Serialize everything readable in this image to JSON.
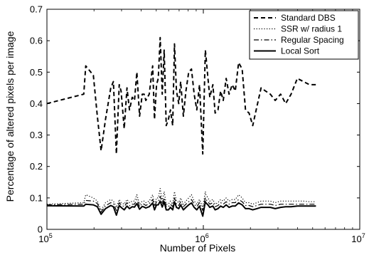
{
  "chart_data": {
    "type": "line",
    "xlabel": "Number of Pixels",
    "ylabel": "Percentage of altered pixels per image",
    "xscale": "log",
    "xlim": [
      100000,
      10000000
    ],
    "ylim": [
      0,
      0.7
    ],
    "grid": false,
    "legend_position": "top-right",
    "x_ticks": [
      {
        "value": 100000,
        "base": "10",
        "exp": "5"
      },
      {
        "value": 1000000,
        "base": "10",
        "exp": "6"
      },
      {
        "value": 10000000,
        "base": "10",
        "exp": "7"
      }
    ],
    "y_ticks": [
      {
        "value": 0,
        "label": "0"
      },
      {
        "value": 0.1,
        "label": "0.1"
      },
      {
        "value": 0.2,
        "label": "0.2"
      },
      {
        "value": 0.3,
        "label": "0.3"
      },
      {
        "value": 0.4,
        "label": "0.4"
      },
      {
        "value": 0.5,
        "label": "0.5"
      },
      {
        "value": 0.6,
        "label": "0.6"
      },
      {
        "value": 0.7,
        "label": "0.7"
      }
    ],
    "series": [
      {
        "name": "Standard DBS",
        "style": "dashed",
        "color": "#000000",
        "x": [
          100000,
          172000,
          177000,
          198000,
          210000,
          222000,
          237000,
          256000,
          266000,
          278000,
          290000,
          298000,
          312000,
          325000,
          337000,
          351000,
          363000,
          376000,
          391000,
          407000,
          418000,
          429000,
          451000,
          474000,
          487000,
          502000,
          515000,
          530000,
          546000,
          562000,
          579000,
          598000,
          616000,
          637000,
          654000,
          673000,
          696000,
          716000,
          745000,
          774000,
          806000,
          840000,
          874000,
          908000,
          945000,
          992000,
          1030000,
          1040000,
          1070000,
          1100000,
          1150000,
          1190000,
          1240000,
          1290000,
          1340000,
          1400000,
          1460000,
          1530000,
          1600000,
          1680000,
          1770000,
          1860000,
          1960000,
          2070000,
          2200000,
          2340000,
          2500000,
          2680000,
          2880000,
          3120000,
          3360000,
          3640000,
          3990000,
          4360000,
          4770000,
          5250000
        ],
        "values": [
          0.4,
          0.43,
          0.52,
          0.49,
          0.36,
          0.25,
          0.35,
          0.45,
          0.47,
          0.24,
          0.46,
          0.44,
          0.32,
          0.45,
          0.38,
          0.42,
          0.41,
          0.5,
          0.36,
          0.43,
          0.43,
          0.41,
          0.43,
          0.52,
          0.35,
          0.46,
          0.48,
          0.61,
          0.43,
          0.57,
          0.33,
          0.35,
          0.38,
          0.33,
          0.59,
          0.44,
          0.4,
          0.47,
          0.36,
          0.44,
          0.5,
          0.51,
          0.43,
          0.38,
          0.46,
          0.24,
          0.57,
          0.55,
          0.48,
          0.42,
          0.46,
          0.37,
          0.38,
          0.44,
          0.41,
          0.48,
          0.43,
          0.46,
          0.44,
          0.53,
          0.51,
          0.38,
          0.37,
          0.33,
          0.39,
          0.45,
          0.44,
          0.43,
          0.41,
          0.43,
          0.4,
          0.43,
          0.48,
          0.47,
          0.46,
          0.46
        ]
      },
      {
        "name": "SSR w/ radius 1",
        "style": "dotted",
        "color": "#000000",
        "x": [
          100000,
          172000,
          177000,
          198000,
          210000,
          222000,
          237000,
          256000,
          266000,
          278000,
          290000,
          298000,
          312000,
          325000,
          337000,
          351000,
          363000,
          376000,
          391000,
          407000,
          418000,
          429000,
          451000,
          474000,
          487000,
          502000,
          515000,
          530000,
          546000,
          562000,
          579000,
          598000,
          616000,
          637000,
          654000,
          673000,
          696000,
          716000,
          745000,
          774000,
          806000,
          840000,
          874000,
          908000,
          945000,
          992000,
          1030000,
          1040000,
          1070000,
          1100000,
          1150000,
          1190000,
          1240000,
          1290000,
          1340000,
          1400000,
          1460000,
          1530000,
          1600000,
          1680000,
          1770000,
          1860000,
          1960000,
          2070000,
          2200000,
          2340000,
          2500000,
          2680000,
          2880000,
          3120000,
          3360000,
          3640000,
          3990000,
          4360000,
          4770000,
          5250000
        ],
        "values": [
          0.08,
          0.085,
          0.11,
          0.1,
          0.09,
          0.06,
          0.085,
          0.095,
          0.09,
          0.07,
          0.095,
          0.085,
          0.08,
          0.095,
          0.085,
          0.09,
          0.09,
          0.11,
          0.08,
          0.09,
          0.09,
          0.085,
          0.09,
          0.11,
          0.08,
          0.1,
          0.1,
          0.13,
          0.09,
          0.12,
          0.08,
          0.08,
          0.09,
          0.08,
          0.12,
          0.09,
          0.085,
          0.1,
          0.08,
          0.09,
          0.1,
          0.11,
          0.09,
          0.08,
          0.095,
          0.07,
          0.12,
          0.11,
          0.1,
          0.09,
          0.095,
          0.08,
          0.085,
          0.095,
          0.09,
          0.1,
          0.09,
          0.095,
          0.095,
          0.11,
          0.1,
          0.085,
          0.085,
          0.08,
          0.085,
          0.09,
          0.09,
          0.09,
          0.085,
          0.09,
          0.09,
          0.09,
          0.09,
          0.09,
          0.088,
          0.088
        ]
      },
      {
        "name": "Regular Spacing",
        "style": "dashdot",
        "color": "#000000",
        "x": [
          100000,
          172000,
          177000,
          198000,
          210000,
          222000,
          237000,
          256000,
          266000,
          278000,
          290000,
          298000,
          312000,
          325000,
          337000,
          351000,
          363000,
          376000,
          391000,
          407000,
          418000,
          429000,
          451000,
          474000,
          487000,
          502000,
          515000,
          530000,
          546000,
          562000,
          579000,
          598000,
          616000,
          637000,
          654000,
          673000,
          696000,
          716000,
          745000,
          774000,
          806000,
          840000,
          874000,
          908000,
          945000,
          992000,
          1030000,
          1040000,
          1070000,
          1100000,
          1150000,
          1190000,
          1240000,
          1290000,
          1340000,
          1400000,
          1460000,
          1530000,
          1600000,
          1680000,
          1770000,
          1860000,
          1960000,
          2070000,
          2200000,
          2340000,
          2500000,
          2680000,
          2880000,
          3120000,
          3360000,
          3640000,
          3990000,
          4360000,
          4770000,
          5250000
        ],
        "values": [
          0.078,
          0.08,
          0.092,
          0.09,
          0.082,
          0.055,
          0.075,
          0.085,
          0.082,
          0.06,
          0.085,
          0.078,
          0.072,
          0.085,
          0.075,
          0.08,
          0.08,
          0.095,
          0.072,
          0.082,
          0.08,
          0.076,
          0.082,
          0.095,
          0.072,
          0.088,
          0.088,
          0.105,
          0.08,
          0.1,
          0.072,
          0.072,
          0.08,
          0.072,
          0.1,
          0.08,
          0.076,
          0.088,
          0.072,
          0.08,
          0.088,
          0.095,
          0.08,
          0.072,
          0.085,
          0.06,
          0.1,
          0.095,
          0.088,
          0.08,
          0.085,
          0.072,
          0.076,
          0.085,
          0.08,
          0.088,
          0.08,
          0.085,
          0.085,
          0.095,
          0.088,
          0.076,
          0.076,
          0.072,
          0.076,
          0.08,
          0.08,
          0.08,
          0.076,
          0.08,
          0.08,
          0.08,
          0.08,
          0.08,
          0.08,
          0.08
        ]
      },
      {
        "name": "Local Sort",
        "style": "solid",
        "color": "#000000",
        "x": [
          100000,
          172000,
          177000,
          198000,
          210000,
          222000,
          237000,
          256000,
          266000,
          278000,
          290000,
          298000,
          312000,
          325000,
          337000,
          351000,
          363000,
          376000,
          391000,
          407000,
          418000,
          429000,
          451000,
          474000,
          487000,
          502000,
          515000,
          530000,
          546000,
          562000,
          579000,
          598000,
          616000,
          637000,
          654000,
          673000,
          696000,
          716000,
          745000,
          774000,
          806000,
          840000,
          874000,
          908000,
          945000,
          992000,
          1030000,
          1040000,
          1070000,
          1100000,
          1150000,
          1190000,
          1240000,
          1290000,
          1340000,
          1400000,
          1460000,
          1530000,
          1600000,
          1680000,
          1770000,
          1860000,
          1960000,
          2070000,
          2200000,
          2340000,
          2500000,
          2680000,
          2880000,
          3120000,
          3360000,
          3640000,
          3990000,
          4360000,
          4770000,
          5250000
        ],
        "values": [
          0.075,
          0.074,
          0.08,
          0.078,
          0.072,
          0.048,
          0.066,
          0.076,
          0.072,
          0.045,
          0.076,
          0.07,
          0.062,
          0.074,
          0.066,
          0.072,
          0.071,
          0.082,
          0.064,
          0.073,
          0.071,
          0.068,
          0.072,
          0.084,
          0.062,
          0.078,
          0.078,
          0.09,
          0.071,
          0.088,
          0.062,
          0.062,
          0.07,
          0.062,
          0.088,
          0.07,
          0.066,
          0.078,
          0.062,
          0.07,
          0.078,
          0.084,
          0.07,
          0.062,
          0.074,
          0.042,
          0.088,
          0.084,
          0.078,
          0.07,
          0.074,
          0.062,
          0.066,
          0.074,
          0.07,
          0.078,
          0.07,
          0.074,
          0.074,
          0.084,
          0.078,
          0.066,
          0.066,
          0.062,
          0.066,
          0.07,
          0.07,
          0.07,
          0.066,
          0.07,
          0.072,
          0.072,
          0.074,
          0.074,
          0.074,
          0.074
        ]
      }
    ]
  }
}
